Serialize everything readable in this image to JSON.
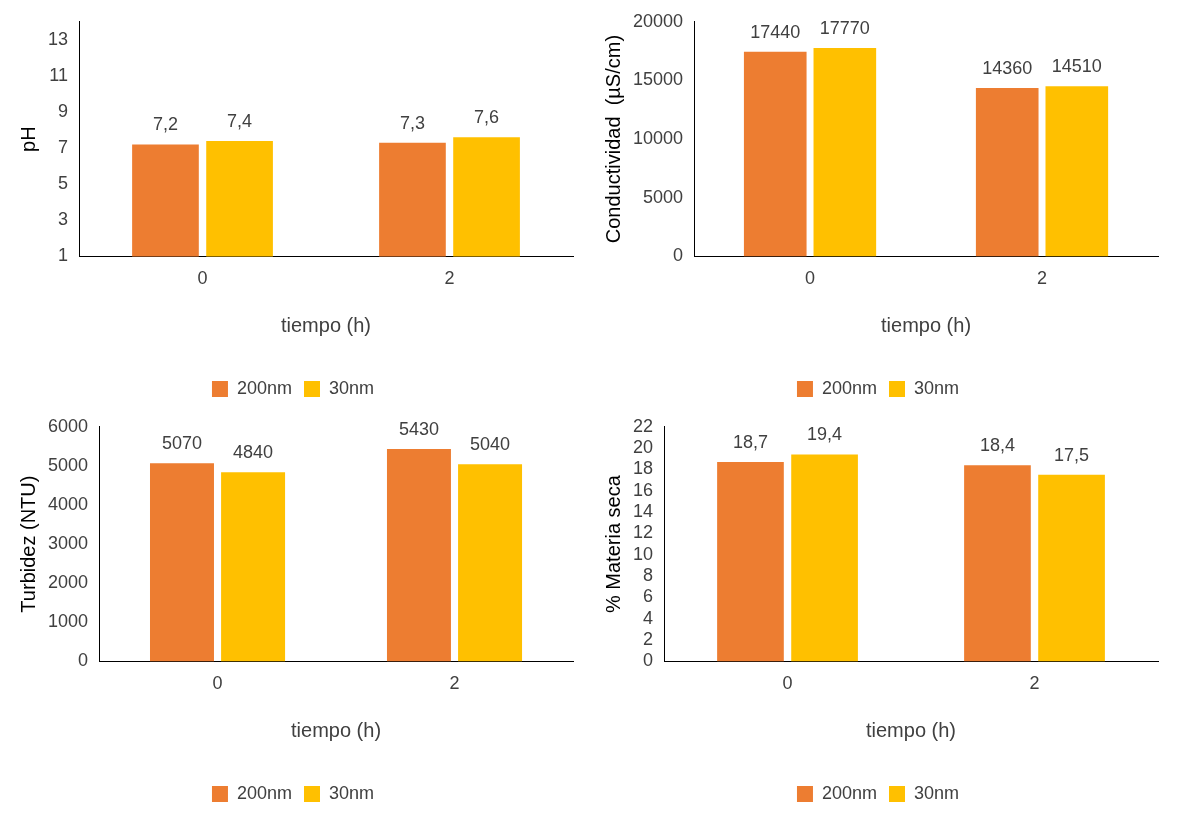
{
  "chart_data": [
    {
      "type": "bar",
      "categories": [
        "0",
        "2"
      ],
      "xlabel": "tiempo (h)",
      "ylabel": "pH",
      "ylim": [
        1,
        14
      ],
      "yticks": [
        1,
        3,
        5,
        7,
        9,
        11,
        13
      ],
      "legend": "bottom",
      "grid": false,
      "series": [
        {
          "name": "200nm",
          "color": "#ed7d31",
          "values": [
            7.2,
            7.3
          ],
          "value_labels": [
            "7,2",
            "7,3"
          ]
        },
        {
          "name": "30nm",
          "color": "#ffc000",
          "values": [
            7.4,
            7.6
          ],
          "value_labels": [
            "7,4",
            "7,6"
          ]
        }
      ]
    },
    {
      "type": "bar",
      "categories": [
        "0",
        "2"
      ],
      "xlabel": "tiempo (h)",
      "ylabel": "Conductividad  (µS/cm)",
      "ylim": [
        0,
        20000
      ],
      "yticks": [
        0,
        5000,
        10000,
        15000,
        20000
      ],
      "legend": "bottom",
      "grid": false,
      "series": [
        {
          "name": "200nm",
          "color": "#ed7d31",
          "values": [
            17440,
            14360
          ],
          "value_labels": [
            "17440",
            "14360"
          ]
        },
        {
          "name": "30nm",
          "color": "#ffc000",
          "values": [
            17770,
            14510
          ],
          "value_labels": [
            "17770",
            "14510"
          ]
        }
      ]
    },
    {
      "type": "bar",
      "categories": [
        "0",
        "2"
      ],
      "xlabel": "tiempo (h)",
      "ylabel": "Turbidez (NTU)",
      "ylim": [
        0,
        6000
      ],
      "yticks": [
        0,
        1000,
        2000,
        3000,
        4000,
        5000,
        6000
      ],
      "legend": "bottom",
      "grid": false,
      "series": [
        {
          "name": "200nm",
          "color": "#ed7d31",
          "values": [
            5070,
            5430
          ],
          "value_labels": [
            "5070",
            "5430"
          ]
        },
        {
          "name": "30nm",
          "color": "#ffc000",
          "values": [
            4840,
            5040
          ],
          "value_labels": [
            "4840",
            "5040"
          ]
        }
      ]
    },
    {
      "type": "bar",
      "categories": [
        "0",
        "2"
      ],
      "xlabel": "tiempo (h)",
      "ylabel": "% Materia seca",
      "ylim": [
        0,
        22
      ],
      "yticks": [
        0,
        2,
        4,
        6,
        8,
        10,
        12,
        14,
        16,
        18,
        20,
        22
      ],
      "legend": "bottom",
      "grid": false,
      "series": [
        {
          "name": "200nm",
          "color": "#ed7d31",
          "values": [
            18.7,
            18.4
          ],
          "value_labels": [
            "18,7",
            "18,4"
          ]
        },
        {
          "name": "30nm",
          "color": "#ffc000",
          "values": [
            19.4,
            17.5
          ],
          "value_labels": [
            "19,4",
            "17,5"
          ]
        }
      ]
    }
  ]
}
